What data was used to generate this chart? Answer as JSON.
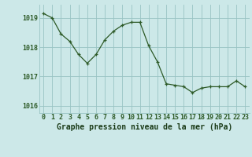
{
  "x": [
    0,
    1,
    2,
    3,
    4,
    5,
    6,
    7,
    8,
    9,
    10,
    11,
    12,
    13,
    14,
    15,
    16,
    17,
    18,
    19,
    20,
    21,
    22,
    23
  ],
  "y": [
    1019.15,
    1019.0,
    1018.45,
    1018.2,
    1017.75,
    1017.45,
    1017.75,
    1018.25,
    1018.55,
    1018.75,
    1018.85,
    1018.85,
    1018.05,
    1017.5,
    1016.75,
    1016.7,
    1016.65,
    1016.45,
    1016.6,
    1016.65,
    1016.65,
    1016.65,
    1016.85,
    1016.65
  ],
  "line_color": "#2d5a27",
  "marker_color": "#2d5a27",
  "bg_color": "#cce8e8",
  "grid_color": "#99c4c4",
  "xlabel": "Graphe pression niveau de la mer (hPa)",
  "xlabel_color": "#1a3a17",
  "xtick_labels": [
    "0",
    "1",
    "2",
    "3",
    "4",
    "5",
    "6",
    "7",
    "8",
    "9",
    "10",
    "11",
    "12",
    "13",
    "14",
    "15",
    "16",
    "17",
    "18",
    "19",
    "20",
    "21",
    "22",
    "23"
  ],
  "ytick_labels": [
    "1016",
    "1017",
    "1018",
    "1019"
  ],
  "ytick_vals": [
    1016,
    1017,
    1018,
    1019
  ],
  "ylim": [
    1015.75,
    1019.45
  ],
  "xlim": [
    -0.5,
    23.5
  ],
  "tick_color": "#2d5a27",
  "axis_label_fontsize": 7.0,
  "tick_fontsize": 6.0
}
